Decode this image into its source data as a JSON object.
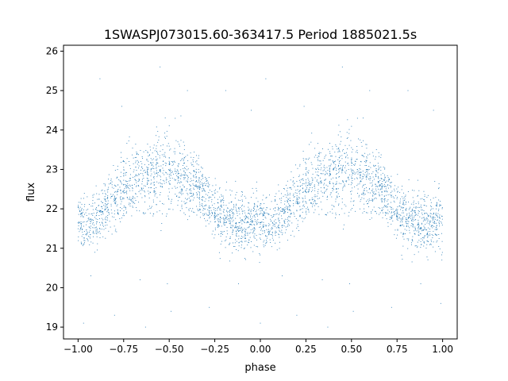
{
  "chart_data": {
    "type": "scatter",
    "title": "1SWASPJ073015.60-363417.5 Period 1885021.5s",
    "xlabel": "phase",
    "ylabel": "flux",
    "xlim": [
      -1.08,
      1.08
    ],
    "ylim": [
      18.7,
      26.15
    ],
    "xticks": [
      -1.0,
      -0.75,
      -0.5,
      -0.25,
      0.0,
      0.25,
      0.5,
      0.75,
      1.0
    ],
    "xtick_labels": [
      "−1.00",
      "−0.75",
      "−0.50",
      "−0.25",
      "0.00",
      "0.25",
      "0.50",
      "0.75",
      "1.00"
    ],
    "yticks": [
      19,
      20,
      21,
      22,
      23,
      24,
      25,
      26
    ],
    "ytick_labels": [
      "19",
      "20",
      "21",
      "22",
      "23",
      "24",
      "25",
      "26"
    ],
    "grid": false,
    "marker_color": "#1f77b4",
    "phase_folded": true,
    "profile": [
      {
        "phase": 0.0,
        "flux": 21.7
      },
      {
        "phase": 0.05,
        "flux": 21.6
      },
      {
        "phase": 0.1,
        "flux": 21.8
      },
      {
        "phase": 0.15,
        "flux": 22.0
      },
      {
        "phase": 0.2,
        "flux": 22.3
      },
      {
        "phase": 0.25,
        "flux": 22.5
      },
      {
        "phase": 0.3,
        "flux": 22.7
      },
      {
        "phase": 0.35,
        "flux": 22.8
      },
      {
        "phase": 0.4,
        "flux": 22.9
      },
      {
        "phase": 0.45,
        "flux": 23.0
      },
      {
        "phase": 0.5,
        "flux": 22.9
      },
      {
        "phase": 0.55,
        "flux": 22.8
      },
      {
        "phase": 0.6,
        "flux": 22.7
      },
      {
        "phase": 0.65,
        "flux": 22.5
      },
      {
        "phase": 0.7,
        "flux": 22.3
      },
      {
        "phase": 0.75,
        "flux": 21.9
      },
      {
        "phase": 0.8,
        "flux": 21.8
      },
      {
        "phase": 0.85,
        "flux": 21.7
      },
      {
        "phase": 0.9,
        "flux": 21.6
      },
      {
        "phase": 0.95,
        "flux": 21.7
      },
      {
        "phase": 1.0,
        "flux": 21.7
      }
    ],
    "scatter_sigma": 0.35,
    "outliers": [
      {
        "x": -0.97,
        "y": 19.1
      },
      {
        "x": -0.93,
        "y": 20.3
      },
      {
        "x": -0.88,
        "y": 25.3
      },
      {
        "x": -0.8,
        "y": 19.3
      },
      {
        "x": -0.76,
        "y": 24.6
      },
      {
        "x": -0.66,
        "y": 20.2
      },
      {
        "x": -0.63,
        "y": 19.0
      },
      {
        "x": -0.55,
        "y": 25.6
      },
      {
        "x": -0.51,
        "y": 20.1
      },
      {
        "x": -0.49,
        "y": 19.4
      },
      {
        "x": -0.4,
        "y": 25.0
      },
      {
        "x": -0.28,
        "y": 19.5
      },
      {
        "x": -0.19,
        "y": 25.0
      },
      {
        "x": -0.12,
        "y": 20.1
      },
      {
        "x": -0.05,
        "y": 24.5
      },
      {
        "x": 0.0,
        "y": 19.1
      },
      {
        "x": 0.03,
        "y": 25.3
      },
      {
        "x": 0.12,
        "y": 20.3
      },
      {
        "x": 0.2,
        "y": 19.3
      },
      {
        "x": 0.24,
        "y": 24.6
      },
      {
        "x": 0.34,
        "y": 20.2
      },
      {
        "x": 0.37,
        "y": 19.0
      },
      {
        "x": 0.45,
        "y": 25.6
      },
      {
        "x": 0.49,
        "y": 20.1
      },
      {
        "x": 0.51,
        "y": 19.4
      },
      {
        "x": 0.6,
        "y": 25.0
      },
      {
        "x": 0.72,
        "y": 19.5
      },
      {
        "x": 0.81,
        "y": 25.0
      },
      {
        "x": 0.88,
        "y": 20.1
      },
      {
        "x": 0.95,
        "y": 24.5
      },
      {
        "x": 0.99,
        "y": 19.6
      }
    ]
  }
}
